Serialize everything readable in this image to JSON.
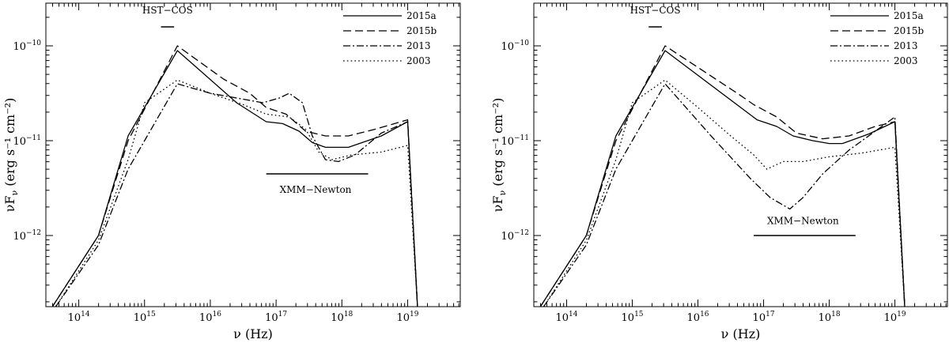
{
  "chart_data": [
    {
      "type": "line",
      "panel": "left",
      "xlabel": "ν (Hz)",
      "ylabel": "νF_ν (erg s⁻¹ cm⁻²)",
      "xscale": "log",
      "yscale": "log",
      "xlim_log10": [
        13.5,
        19.8
      ],
      "ylim_log10": [
        -12.75,
        -9.55
      ],
      "xticks": [
        {
          "log": 14,
          "label": "10^14"
        },
        {
          "log": 15,
          "label": "10^15"
        },
        {
          "log": 16,
          "label": "10^16"
        },
        {
          "log": 17,
          "label": "10^17"
        },
        {
          "log": 18,
          "label": "10^18"
        },
        {
          "log": 19,
          "label": "10^19"
        }
      ],
      "yticks": [
        {
          "log": -12,
          "label": "10^−12"
        },
        {
          "log": -11,
          "label": "10^−11"
        },
        {
          "log": -10,
          "label": "10^−10"
        }
      ],
      "annotations": [
        {
          "text": "HST−COS",
          "band_log": [
            15.25,
            15.45
          ],
          "text_log_x": 15.35,
          "text_log_y": -9.66,
          "bar_log_y": -9.8
        },
        {
          "text": "XMM−Newton",
          "band_log": [
            16.85,
            18.4
          ],
          "text_log_x": 17.6,
          "text_log_y": -11.55,
          "bar_log_y": -11.35
        }
      ],
      "series": [
        {
          "name": "2015a",
          "style": "solid",
          "points": [
            [
              13.6,
              -12.75
            ],
            [
              14.3,
              -12.0
            ],
            [
              14.75,
              -10.95
            ],
            [
              15.5,
              -10.05
            ],
            [
              16.4,
              -10.6
            ],
            [
              16.85,
              -10.8
            ],
            [
              17.1,
              -10.82
            ],
            [
              17.35,
              -10.9
            ],
            [
              17.55,
              -11.02
            ],
            [
              17.75,
              -11.07
            ],
            [
              18.1,
              -11.07
            ],
            [
              18.6,
              -10.95
            ],
            [
              19.0,
              -10.8
            ],
            [
              19.15,
              -12.75
            ]
          ]
        },
        {
          "name": "2015b",
          "style": "dashed",
          "points": [
            [
              13.6,
              -12.75
            ],
            [
              14.3,
              -12.0
            ],
            [
              14.75,
              -11.0
            ],
            [
              15.5,
              -10.0
            ],
            [
              16.2,
              -10.35
            ],
            [
              16.6,
              -10.5
            ],
            [
              16.85,
              -10.65
            ],
            [
              17.15,
              -10.72
            ],
            [
              17.45,
              -10.9
            ],
            [
              17.75,
              -10.95
            ],
            [
              18.1,
              -10.95
            ],
            [
              18.5,
              -10.88
            ],
            [
              19.0,
              -10.78
            ],
            [
              19.15,
              -12.75
            ]
          ]
        },
        {
          "name": "2013",
          "style": "dashdot",
          "points": [
            [
              13.65,
              -12.75
            ],
            [
              14.3,
              -12.1
            ],
            [
              14.75,
              -11.3
            ],
            [
              15.0,
              -11.0
            ],
            [
              15.5,
              -10.4
            ],
            [
              16.0,
              -10.5
            ],
            [
              16.4,
              -10.55
            ],
            [
              16.8,
              -10.6
            ],
            [
              17.05,
              -10.55
            ],
            [
              17.2,
              -10.5
            ],
            [
              17.4,
              -10.6
            ],
            [
              17.55,
              -10.95
            ],
            [
              17.75,
              -11.2
            ],
            [
              17.95,
              -11.22
            ],
            [
              18.2,
              -11.15
            ],
            [
              18.6,
              -10.92
            ],
            [
              19.0,
              -10.8
            ],
            [
              19.15,
              -12.75
            ]
          ]
        },
        {
          "name": "2003",
          "style": "dotted",
          "points": [
            [
              13.65,
              -12.75
            ],
            [
              14.3,
              -12.05
            ],
            [
              14.75,
              -11.2
            ],
            [
              15.0,
              -10.6
            ],
            [
              15.5,
              -10.36
            ],
            [
              16.0,
              -10.5
            ],
            [
              16.5,
              -10.62
            ],
            [
              16.85,
              -10.72
            ],
            [
              17.2,
              -10.75
            ],
            [
              17.45,
              -10.88
            ],
            [
              17.65,
              -11.12
            ],
            [
              17.85,
              -11.2
            ],
            [
              18.15,
              -11.15
            ],
            [
              18.6,
              -11.12
            ],
            [
              19.0,
              -11.05
            ],
            [
              19.15,
              -12.75
            ]
          ]
        }
      ]
    },
    {
      "type": "line",
      "panel": "right",
      "xlabel": "ν (Hz)",
      "ylabel": "νF_ν (erg s⁻¹ cm⁻²)",
      "xscale": "log",
      "yscale": "log",
      "xlim_log10": [
        13.5,
        19.8
      ],
      "ylim_log10": [
        -12.75,
        -9.55
      ],
      "xticks": [
        {
          "log": 14,
          "label": "10^14"
        },
        {
          "log": 15,
          "label": "10^15"
        },
        {
          "log": 16,
          "label": "10^16"
        },
        {
          "log": 17,
          "label": "10^17"
        },
        {
          "log": 18,
          "label": "10^18"
        },
        {
          "log": 19,
          "label": "10^19"
        }
      ],
      "yticks": [
        {
          "log": -12,
          "label": "10^−12"
        },
        {
          "log": -11,
          "label": "10^−11"
        },
        {
          "log": -10,
          "label": "10^−10"
        }
      ],
      "annotations": [
        {
          "text": "HST−COS",
          "band_log": [
            15.25,
            15.45
          ],
          "text_log_x": 15.35,
          "text_log_y": -9.66,
          "bar_log_y": -9.8
        },
        {
          "text": "XMM−Newton",
          "band_log": [
            16.85,
            18.4
          ],
          "text_log_x": 17.6,
          "text_log_y": -11.88,
          "bar_log_y": -12.0
        }
      ],
      "series": [
        {
          "name": "2015a",
          "style": "solid",
          "points": [
            [
              13.6,
              -12.75
            ],
            [
              14.3,
              -12.0
            ],
            [
              14.75,
              -10.95
            ],
            [
              15.5,
              -10.05
            ],
            [
              16.9,
              -10.78
            ],
            [
              17.2,
              -10.85
            ],
            [
              17.45,
              -10.95
            ],
            [
              17.75,
              -11.0
            ],
            [
              18.0,
              -11.03
            ],
            [
              18.2,
              -11.03
            ],
            [
              18.6,
              -10.93
            ],
            [
              19.0,
              -10.8
            ],
            [
              19.15,
              -12.75
            ]
          ]
        },
        {
          "name": "2015b",
          "style": "dashed",
          "points": [
            [
              13.6,
              -12.75
            ],
            [
              14.3,
              -12.0
            ],
            [
              14.75,
              -11.0
            ],
            [
              15.5,
              -10.0
            ],
            [
              16.6,
              -10.5
            ],
            [
              16.85,
              -10.62
            ],
            [
              17.2,
              -10.75
            ],
            [
              17.5,
              -10.92
            ],
            [
              17.9,
              -10.98
            ],
            [
              18.3,
              -10.95
            ],
            [
              18.7,
              -10.85
            ],
            [
              19.0,
              -10.8
            ],
            [
              19.15,
              -12.75
            ]
          ]
        },
        {
          "name": "2013",
          "style": "dashdot",
          "points": [
            [
              13.65,
              -12.75
            ],
            [
              14.3,
              -12.1
            ],
            [
              14.75,
              -11.3
            ],
            [
              15.0,
              -11.0
            ],
            [
              15.5,
              -10.4
            ],
            [
              16.2,
              -10.95
            ],
            [
              16.8,
              -11.4
            ],
            [
              17.1,
              -11.6
            ],
            [
              17.4,
              -11.72
            ],
            [
              17.6,
              -11.6
            ],
            [
              17.9,
              -11.35
            ],
            [
              18.3,
              -11.1
            ],
            [
              18.7,
              -10.9
            ],
            [
              19.0,
              -10.75
            ],
            [
              19.15,
              -12.75
            ]
          ]
        },
        {
          "name": "2003",
          "style": "dotted",
          "points": [
            [
              13.65,
              -12.75
            ],
            [
              14.3,
              -12.05
            ],
            [
              14.75,
              -11.2
            ],
            [
              15.0,
              -10.6
            ],
            [
              15.5,
              -10.36
            ],
            [
              16.0,
              -10.65
            ],
            [
              16.5,
              -10.95
            ],
            [
              16.85,
              -11.15
            ],
            [
              17.05,
              -11.3
            ],
            [
              17.3,
              -11.22
            ],
            [
              17.6,
              -11.22
            ],
            [
              18.0,
              -11.17
            ],
            [
              18.5,
              -11.13
            ],
            [
              19.0,
              -11.07
            ],
            [
              19.15,
              -12.75
            ]
          ]
        }
      ]
    }
  ]
}
